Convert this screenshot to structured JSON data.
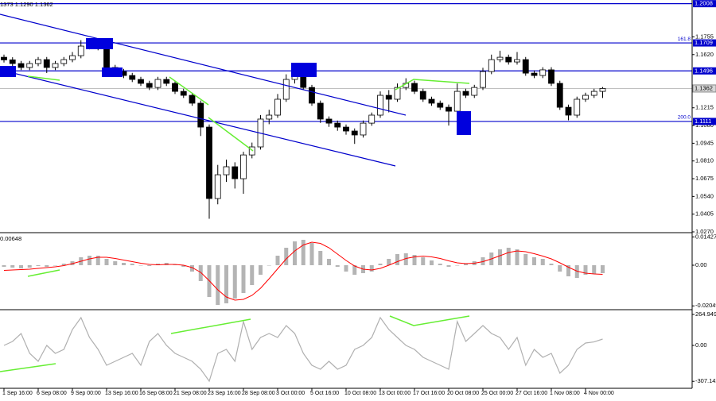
{
  "chart_data": [
    {
      "type": "candlestick",
      "ohlc_text": "1373 1.1290 1.1362",
      "categories": [
        "1 Sep 16:00",
        null,
        null,
        null,
        "6 Sep 08:00",
        null,
        null,
        null,
        "9 Sep 00:00",
        null,
        null,
        null,
        "13 Sep 16:00",
        null,
        null,
        null,
        "16 Sep 08:00",
        null,
        null,
        null,
        "21 Sep 08:00",
        null,
        null,
        null,
        "23 Sep 16:00",
        null,
        null,
        null,
        "28 Sep 08:00",
        null,
        null,
        null,
        "3 Oct 00:00",
        null,
        null,
        null,
        "5 Oct 16:00",
        null,
        null,
        null,
        "10 Oct 08:00",
        null,
        null,
        null,
        "13 Oct 00:00",
        null,
        null,
        null,
        "17 Oct 16:00",
        null,
        null,
        null,
        "20 Oct 08:00",
        null,
        null,
        null,
        "25 Oct 00:00",
        null,
        null,
        null,
        "27 Oct 16:00",
        null,
        null,
        null,
        "1 Nov 08:00",
        null,
        null,
        null,
        "4 Nov 00:00",
        null,
        null
      ],
      "open": [
        1.16,
        1.158,
        1.1552,
        1.1522,
        1.1552,
        1.1582,
        1.1522,
        1.1552,
        1.1582,
        1.1612,
        1.1685,
        1.1691,
        1.1673,
        1.1522,
        1.1491,
        1.1461,
        1.1431,
        1.1401,
        1.137,
        1.1431,
        1.1401,
        1.134,
        1.131,
        1.125,
        1.1068,
        1.0524,
        1.0705,
        1.0766,
        1.0675,
        1.0856,
        1.0917,
        1.1129,
        1.1159,
        1.128,
        1.1431,
        1.1461,
        1.137,
        1.125,
        1.1129,
        1.1098,
        1.1068,
        1.1038,
        1.1008,
        1.1098,
        1.1159,
        1.131,
        1.128,
        1.137,
        1.1401,
        1.134,
        1.128,
        1.125,
        1.1219,
        1.1189,
        1.134,
        1.131,
        1.137,
        1.1491,
        1.1582,
        1.16,
        1.1564,
        1.1582,
        1.1479,
        1.1461,
        1.1504,
        1.1401,
        1.1219,
        1.1159,
        1.128,
        1.131,
        1.134
      ],
      "high": [
        1.162,
        1.16,
        1.1572,
        1.1572,
        1.1602,
        1.1602,
        1.1572,
        1.1602,
        1.164,
        1.173,
        1.172,
        1.1711,
        1.1693,
        1.1542,
        1.1511,
        1.1481,
        1.1451,
        1.1421,
        1.1451,
        1.1451,
        1.1421,
        1.136,
        1.133,
        1.127,
        1.1088,
        1.078,
        1.082,
        1.08,
        1.088,
        1.095,
        1.116,
        1.12,
        1.132,
        1.147,
        1.153,
        1.149,
        1.139,
        1.127,
        1.1149,
        1.1118,
        1.1088,
        1.1058,
        1.1118,
        1.1179,
        1.134,
        1.135,
        1.14,
        1.144,
        1.1421,
        1.136,
        1.13,
        1.127,
        1.124,
        1.14,
        1.136,
        1.139,
        1.152,
        1.162,
        1.165,
        1.162,
        1.164,
        1.1602,
        1.1499,
        1.1524,
        1.1524,
        1.1421,
        1.1239,
        1.13,
        1.133,
        1.136,
        1.1373
      ],
      "low": [
        1.156,
        1.1532,
        1.1502,
        1.1502,
        1.1532,
        1.148,
        1.1502,
        1.1532,
        1.1562,
        1.1592,
        1.166,
        1.1653,
        1.1502,
        1.1471,
        1.1441,
        1.1411,
        1.1381,
        1.135,
        1.135,
        1.1381,
        1.132,
        1.129,
        1.123,
        1.1,
        1.037,
        1.048,
        1.065,
        1.06,
        1.056,
        1.083,
        1.0897,
        1.109,
        1.1139,
        1.126,
        1.14,
        1.135,
        1.123,
        1.11,
        1.107,
        1.104,
        1.101,
        1.094,
        1.0988,
        1.1078,
        1.1139,
        1.118,
        1.126,
        1.135,
        1.132,
        1.126,
        1.123,
        1.1199,
        1.108,
        1.1169,
        1.129,
        1.129,
        1.135,
        1.1471,
        1.1562,
        1.1544,
        1.1544,
        1.1459,
        1.1441,
        1.1441,
        1.1381,
        1.1199,
        1.112,
        1.1139,
        1.126,
        1.129,
        1.129
      ],
      "close": [
        1.158,
        1.1552,
        1.1522,
        1.1552,
        1.1582,
        1.1522,
        1.1552,
        1.1582,
        1.1612,
        1.1685,
        1.1691,
        1.1673,
        1.1522,
        1.1491,
        1.1461,
        1.1431,
        1.1401,
        1.137,
        1.1431,
        1.1401,
        1.134,
        1.131,
        1.125,
        1.1068,
        1.0524,
        1.0705,
        1.0766,
        1.0675,
        1.0856,
        1.0917,
        1.1129,
        1.1159,
        1.128,
        1.1431,
        1.1461,
        1.137,
        1.125,
        1.1129,
        1.1098,
        1.1068,
        1.1038,
        1.1008,
        1.1098,
        1.1159,
        1.131,
        1.128,
        1.137,
        1.1401,
        1.134,
        1.128,
        1.125,
        1.1219,
        1.1189,
        1.134,
        1.131,
        1.137,
        1.1491,
        1.1582,
        1.16,
        1.1564,
        1.1582,
        1.1479,
        1.1461,
        1.1504,
        1.1401,
        1.1219,
        1.1159,
        1.128,
        1.131,
        1.134,
        1.1362
      ],
      "color_up": "#ffffff",
      "color_down": "#000000",
      "ylim": [
        1.027,
        1.2036
      ],
      "yticks": [
        {
          "value": 1.027,
          "label": "1.0270"
        },
        1.0405,
        {
          "value": 1.054,
          "label": "1.0540"
        },
        1.0675,
        {
          "value": 1.081,
          "label": "1.0810"
        },
        1.0945,
        {
          "value": 1.108,
          "label": "1.1080"
        },
        1.1215,
        {
          "value": 1.162,
          "label": "1.1620"
        },
        1.1755
      ],
      "levels": [
        {
          "value": 1.2008,
          "label": "1.2008"
        },
        {
          "value": 1.1709,
          "label": "1.1709",
          "fib": "161.8"
        },
        {
          "value": 1.1496,
          "label": "1.1496"
        },
        {
          "value": 1.1111,
          "label": "1.1111",
          "fib": "200.0"
        }
      ],
      "level_color": "#0000cc",
      "last": {
        "value": 1.1362,
        "label": "1.1362"
      }
    },
    {
      "type": "macd",
      "value_text": "0.00648",
      "values": [
        -0.0008,
        -0.0012,
        -0.0016,
        -0.0012,
        -0.0004,
        -0.0008,
        0,
        0.0008,
        0.002,
        0.004,
        0.0048,
        0.0048,
        0.0032,
        0.002,
        0.0012,
        0.0008,
        0,
        -0.0004,
        0.0008,
        0.0012,
        0.0004,
        -0.0008,
        -0.0032,
        -0.008,
        -0.016,
        -0.02,
        -0.0192,
        -0.0168,
        -0.014,
        -0.01,
        -0.0048,
        0,
        0.0048,
        0.0088,
        0.012,
        0.0128,
        0.0112,
        0.0072,
        0.0032,
        -0.0008,
        -0.0032,
        -0.0048,
        -0.004,
        -0.0032,
        0.0008,
        0.0032,
        0.0056,
        0.006,
        0.0052,
        0.004,
        0.0024,
        0.0008,
        -0.0008,
        0,
        0.0008,
        0.002,
        0.004,
        0.0064,
        0.008,
        0.0088,
        0.008,
        0.0056,
        0.004,
        0.0032,
        0.0008,
        -0.0032,
        -0.0056,
        -0.0064,
        -0.0048,
        -0.0044,
        -0.004
      ],
      "signal": [
        -0.0026,
        -0.0024,
        -0.0022,
        -0.002,
        -0.0016,
        -0.0012,
        -0.0008,
        -0.0002,
        0.0008,
        0.002,
        0.0032,
        0.004,
        0.004,
        0.0034,
        0.0026,
        0.0018,
        0.001,
        0.0004,
        0.0002,
        0.0004,
        0.0004,
        0,
        -0.0012,
        -0.0036,
        -0.0078,
        -0.0124,
        -0.016,
        -0.0176,
        -0.0172,
        -0.0152,
        -0.0116,
        -0.0068,
        -0.0018,
        0.0032,
        0.0072,
        0.0102,
        0.0116,
        0.011,
        0.0088,
        0.0056,
        0.0024,
        -0.0004,
        -0.002,
        -0.0024,
        -0.0016,
        0,
        0.0018,
        0.0034,
        0.0042,
        0.0046,
        0.0042,
        0.0034,
        0.0022,
        0.0012,
        0.0008,
        0.001,
        0.0018,
        0.0032,
        0.0048,
        0.0064,
        0.0072,
        0.0068,
        0.0058,
        0.0046,
        0.0032,
        0.0012,
        -0.001,
        -0.003,
        -0.004,
        -0.0044,
        -0.0046
      ],
      "color": "#b4b4b4",
      "signal_color": "#ff0000",
      "ylim": [
        -0.0216,
        0.016
      ],
      "yticks": [
        {
          "value": 0.01427,
          "label": "0.01427"
        },
        {
          "value": 0,
          "label": "0.00"
        },
        {
          "value": -0.02049,
          "label": "-0.02049"
        }
      ]
    },
    {
      "type": "line",
      "values": [
        0,
        34,
        102,
        -68,
        -136,
        0,
        -68,
        -34,
        136,
        238,
        68,
        -34,
        -170,
        -136,
        -102,
        -68,
        -170,
        34,
        102,
        0,
        -68,
        -102,
        -136,
        -204,
        -306,
        -68,
        -34,
        -136,
        204,
        -34,
        68,
        102,
        68,
        170,
        102,
        -68,
        -170,
        -204,
        -136,
        -204,
        -170,
        -34,
        0,
        68,
        238,
        136,
        68,
        0,
        -34,
        -102,
        -136,
        -170,
        -204,
        204,
        34,
        102,
        170,
        102,
        68,
        -34,
        68,
        -170,
        -34,
        -102,
        -68,
        -238,
        -170,
        -34,
        20,
        30,
        54
      ],
      "color": "#b0b0b0",
      "ylim": [
        -360,
        292
      ],
      "yticks": [
        {
          "value": 264.9492,
          "label": "264.9492"
        },
        {
          "value": 0,
          "label": "0.00"
        },
        {
          "value": -307.142,
          "label": "-307.142"
        }
      ]
    }
  ]
}
